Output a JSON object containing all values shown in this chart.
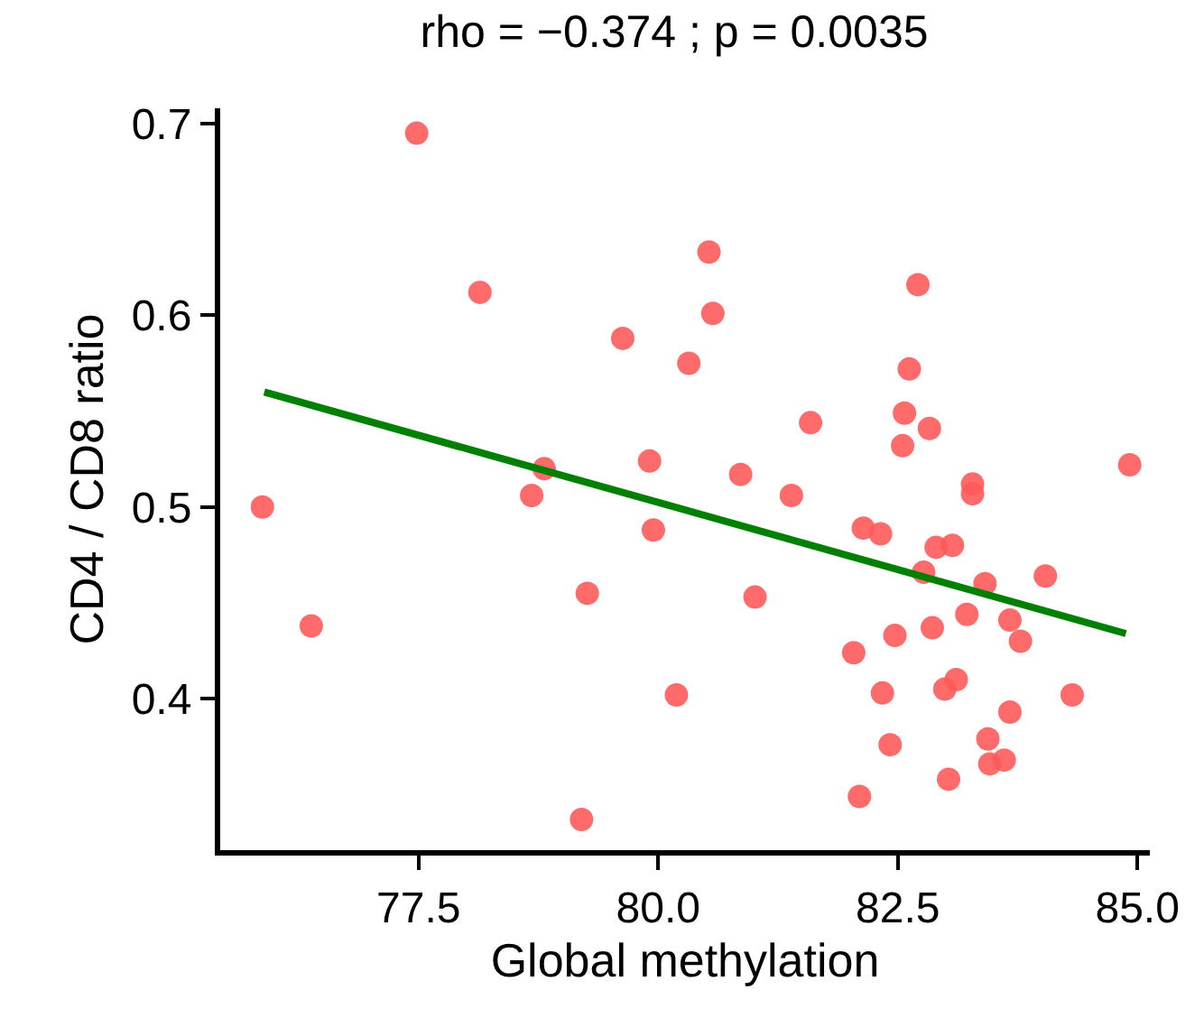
{
  "chart_data": {
    "type": "scatter",
    "title": "rho = −0.374 ; p = 0.0035",
    "xlabel": "Global methylation",
    "ylabel": "CD4 / CD8 ratio",
    "xlim": [
      75.43,
      85.13
    ],
    "ylim": [
      0.321,
      0.708
    ],
    "xticks": [
      {
        "value": 77.5,
        "label": "77.5"
      },
      {
        "value": 80,
        "label": "80.0"
      },
      {
        "value": 82.5,
        "label": "82.5"
      },
      {
        "value": 85,
        "label": "85.0"
      }
    ],
    "yticks": [
      0.4,
      0.5,
      0.6,
      0.7
    ],
    "marker": "circle",
    "series": [
      {
        "color": "#ff5a5a",
        "x": [
          75.87,
          76.38,
          77.48,
          78.14,
          78.68,
          78.81,
          79.26,
          79.2,
          79.63,
          79.95,
          79.91,
          80.19,
          80.32,
          80.53,
          80.57,
          80.86,
          81.01,
          81.39,
          81.59,
          82.04,
          82.1,
          82.14,
          82.32,
          82.34,
          82.42,
          82.47,
          82.55,
          82.57,
          82.62,
          82.71,
          82.77,
          82.83,
          82.86,
          82.9,
          82.99,
          83.03,
          83.07,
          83.11,
          83.22,
          83.28,
          83.28,
          83.41,
          83.44,
          83.46,
          83.61,
          83.67,
          83.67,
          83.78,
          84.04,
          84.32,
          84.92
        ],
        "values": [
          0.5,
          0.438,
          0.695,
          0.612,
          0.506,
          0.52,
          0.455,
          0.337,
          0.588,
          0.488,
          0.524,
          0.402,
          0.575,
          0.633,
          0.601,
          0.517,
          0.453,
          0.506,
          0.544,
          0.424,
          0.349,
          0.489,
          0.486,
          0.403,
          0.376,
          0.433,
          0.532,
          0.549,
          0.572,
          0.616,
          0.466,
          0.541,
          0.437,
          0.479,
          0.405,
          0.358,
          0.48,
          0.41,
          0.444,
          0.512,
          0.507,
          0.46,
          0.379,
          0.366,
          0.368,
          0.441,
          0.393,
          0.43,
          0.464,
          0.402,
          0.522
        ]
      },
      {
        "type": "line",
        "color": "#008000",
        "marker": "none",
        "line_style": "solid",
        "x": [
          75.89,
          84.88
        ],
        "values": [
          0.56,
          0.434
        ]
      }
    ]
  }
}
